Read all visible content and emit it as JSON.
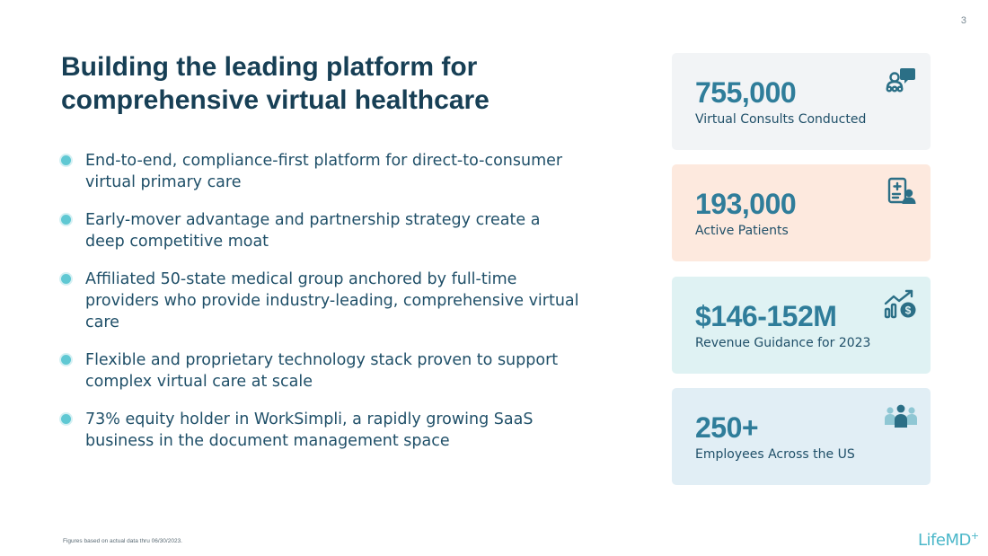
{
  "page": {
    "number": "3"
  },
  "title": {
    "line1": "Building the leading platform for",
    "line2": "comprehensive virtual healthcare"
  },
  "bullets": [
    "End-to-end, compliance-first platform for direct-to-consumer virtual primary care",
    "Early-mover advantage and partnership strategy create a deep competitive moat",
    "Affiliated 50-state medical group anchored by full-time providers who provide industry-leading, comprehensive virtual care",
    "Flexible and proprietary technology stack proven to support complex virtual care at scale",
    "73% equity holder in WorkSimpli, a rapidly growing SaaS business in the document management space"
  ],
  "stats": [
    {
      "value": "755,000",
      "label": "Virtual Consults Conducted",
      "icon": "consult-icon",
      "bg": "#f2f4f6"
    },
    {
      "value": "193,000",
      "label": "Active Patients",
      "icon": "patient-record-icon",
      "bg": "#fde9de"
    },
    {
      "value": "$146-152M",
      "label": "Revenue Guidance for 2023",
      "icon": "revenue-growth-icon",
      "bg": "#dff2f3"
    },
    {
      "value": "250+",
      "label": "Employees Across the US",
      "icon": "team-icon",
      "bg": "#e1eef5"
    }
  ],
  "footnote": "Figures based on actual data thru 06/30/2023.",
  "logo": {
    "text": "LifeMD",
    "mark": "+"
  },
  "colors": {
    "title": "#173f55",
    "body_text": "#1f4f68",
    "stat_value": "#2f7d9a",
    "bullet": "#5fc8d3",
    "icon": "#2b6f86"
  }
}
